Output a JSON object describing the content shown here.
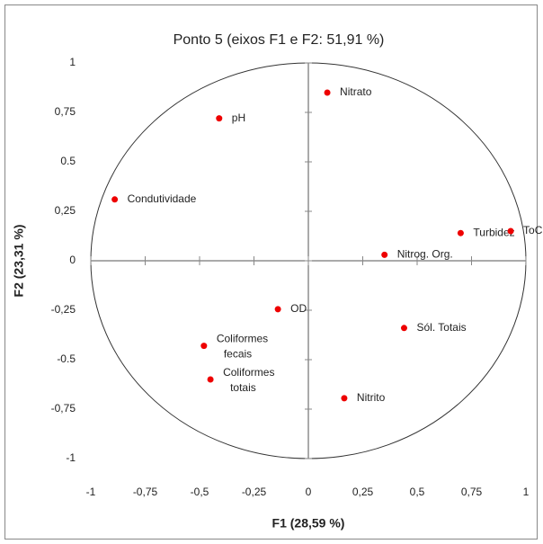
{
  "chart_data": {
    "type": "scatter",
    "title": "Ponto 5 (eixos F1 e F2: 51,91 %)",
    "xlabel": "F1 (28,59 %)",
    "ylabel": "F2 (23,31 %)",
    "labels": [
      "Nitrato",
      "pH",
      "Condutividade",
      "Turbidez",
      "ToC",
      "Nitrog. Org.",
      "OD",
      "Sól. Totais",
      "Coliformes fecais",
      "Coliformes totais",
      "Nitrito"
    ],
    "x": [
      0.087,
      -0.41,
      -0.89,
      0.7,
      0.93,
      0.35,
      -0.14,
      0.44,
      -0.48,
      -0.45,
      0.165
    ],
    "values": [
      0.85,
      0.72,
      0.31,
      0.14,
      0.15,
      0.03,
      -0.245,
      -0.34,
      -0.43,
      -0.6,
      -0.695
    ],
    "color": "#ee0000",
    "xlim": [
      -1,
      1
    ],
    "ylim": [
      -1,
      1
    ],
    "xticks": [
      -1,
      {
        "value": -0.75,
        "label": "-0,75"
      },
      {
        "value": -0.5,
        "label": "-0,5"
      },
      {
        "value": -0.25,
        "label": "-0,25"
      },
      0,
      {
        "value": 0.25,
        "label": "0,25"
      },
      {
        "value": 0.5,
        "label": "0,5"
      },
      {
        "value": 0.75,
        "label": "0,75"
      },
      1
    ],
    "yticks": [
      1,
      {
        "value": 0.75,
        "label": "0,75"
      },
      0.5,
      {
        "value": 0.25,
        "label": "0,25"
      },
      0,
      {
        "value": -0.25,
        "label": "-0,25"
      },
      -0.5,
      {
        "value": -0.75,
        "label": "-0,75"
      },
      -1
    ],
    "grid": false
  }
}
